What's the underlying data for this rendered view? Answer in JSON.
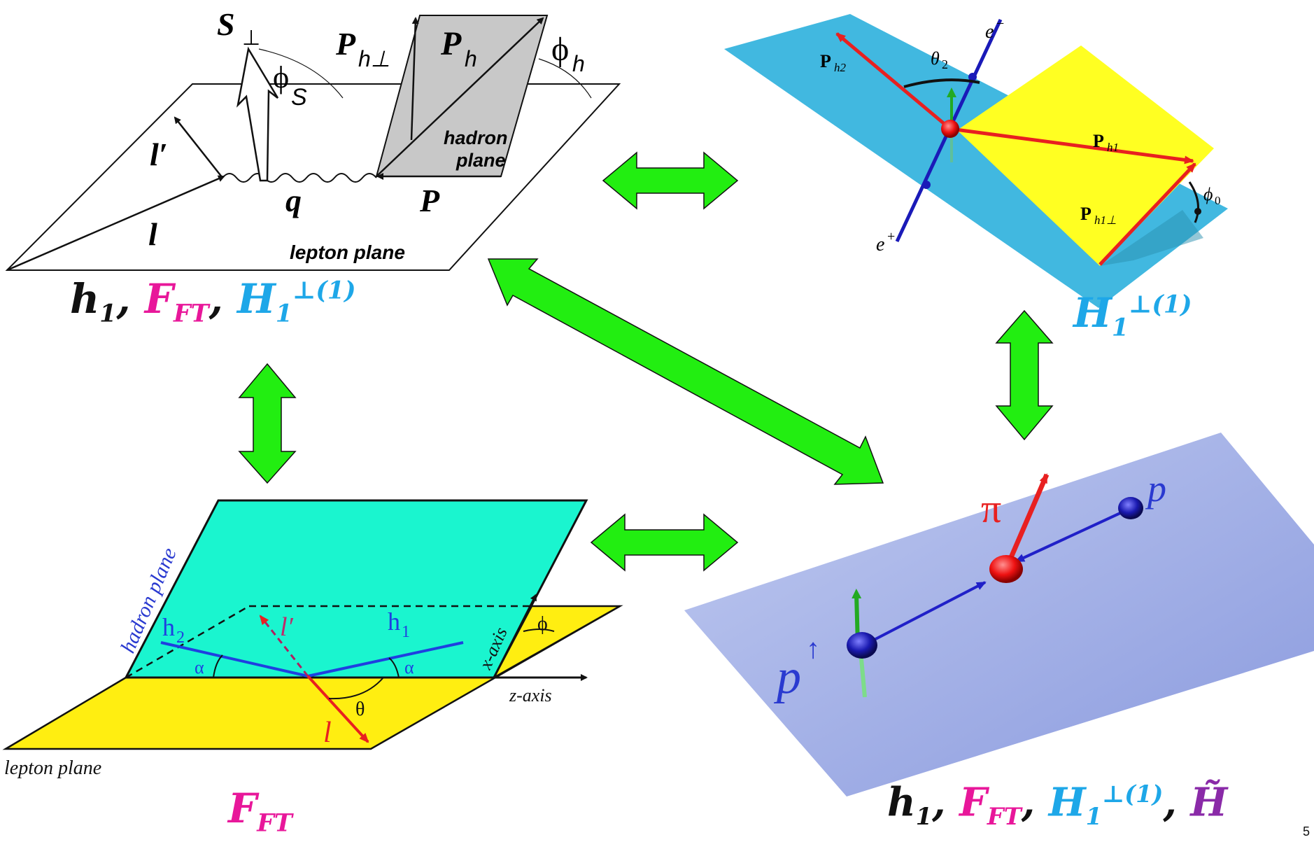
{
  "colors": {
    "arrow_green": "#22ee11",
    "pink_label": "#e8179a",
    "cyan_label": "#1ea7e8",
    "purple_label": "#8a2aa8",
    "sidis_hadron_plane": "#c8c8c8",
    "ee_plane": "#41b8e0",
    "ee_yellow": "#ffff22",
    "dihadron_hadron_plane": "#1af5cf",
    "dihadron_lepton_plane": "#ffee11",
    "pp_plane": "#a8b6ea"
  },
  "sidis": {
    "S_perp": "S",
    "perp": "⊥",
    "phi_S": "ϕ",
    "phi_S_sub": "S",
    "P_h_perp": "P",
    "P_h_perp_sub": "h⊥",
    "P_h": "P",
    "P_h_sub": "h",
    "phi_h": "ϕ",
    "phi_h_sub": "h",
    "hadron": "hadron",
    "plane": "plane",
    "l_prime": "l′",
    "l": "l",
    "q": "q",
    "P": "P",
    "lepton_plane": "lepton plane"
  },
  "ee": {
    "e_minus": "e",
    "e_minus_sup": "−",
    "e_plus": "e",
    "e_plus_sup": "+",
    "theta2": "θ",
    "theta2_sub": "2",
    "Ph2": "P",
    "Ph2_sub": "h2",
    "Ph1": "P",
    "Ph1_sub": "h1",
    "Ph1perp": "P",
    "Ph1perp_sub": "h1⊥",
    "phi0": "ϕ",
    "phi0_sub": "0"
  },
  "dihadron": {
    "hadron_plane": "hadron plane",
    "h2": "h",
    "h2_sub": "2",
    "h1": "h",
    "h1_sub": "1",
    "l_prime": "l′",
    "l": "l",
    "alpha1": "α",
    "alpha2": "α",
    "theta": "θ",
    "phi": "ϕ",
    "x_axis": "x-axis",
    "z_axis": "z-axis",
    "lepton_plane": "lepton plane"
  },
  "pp": {
    "pi": "π",
    "p": "p",
    "p_up": "p",
    "up_arrow": "↑"
  },
  "labels": {
    "sidis_funcs": {
      "h1": "h",
      "h1_sub": "1",
      "sep1": ", ",
      "F": "F",
      "F_sub": "FT",
      "sep2": ", ",
      "H": "H",
      "H_sub": "1",
      "H_sup": "⊥(1)"
    },
    "ee_funcs": {
      "H": "H",
      "H_sub": "1",
      "H_sup": "⊥(1)"
    },
    "dihadron_funcs": {
      "F": "F",
      "F_sub": "FT"
    },
    "pp_funcs": {
      "h1": "h",
      "h1_sub": "1",
      "sep1": ", ",
      "F": "F",
      "F_sub": "FT",
      "sep2": ", ",
      "H": "H",
      "H_sub": "1",
      "H_sup": "⊥(1)",
      "sep3": ", ",
      "Ht": "H̃"
    }
  },
  "page_number": "5"
}
